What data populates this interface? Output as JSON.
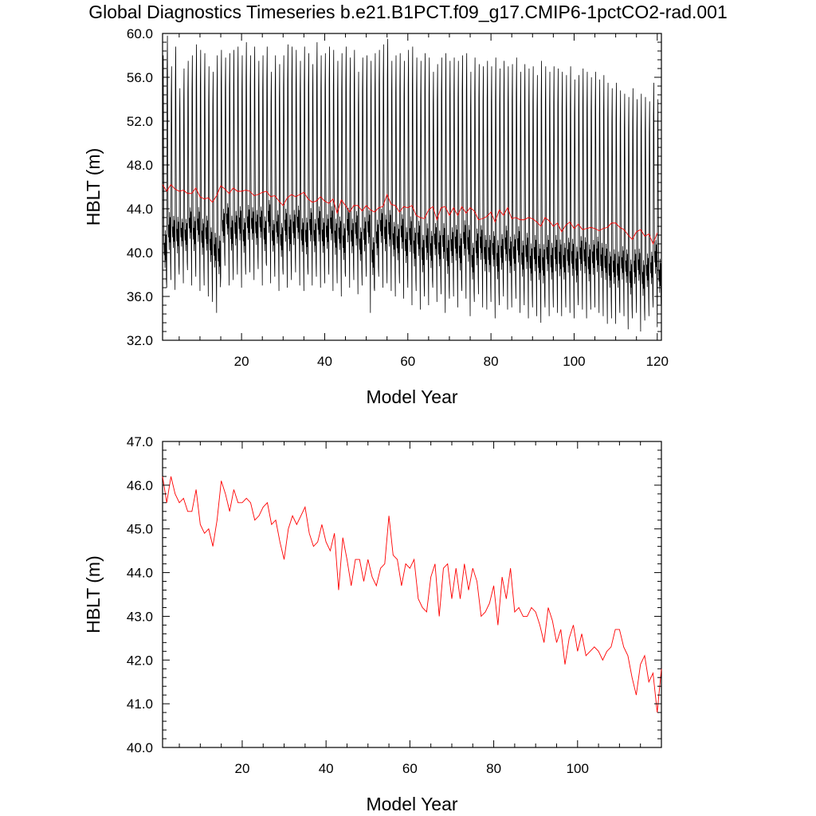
{
  "title": "Global Diagnostics Timeseries b.e21.B1PCT.f09_g17.CMIP6-1pctCO2-rad.001",
  "colors": {
    "monthly": "#000000",
    "annual": "#ff0000"
  },
  "chart_data": [
    {
      "type": "line",
      "xlabel": "Model Year",
      "ylabel": "HBLT (m)",
      "xlim": [
        1,
        121
      ],
      "ylim": [
        32,
        60
      ],
      "xticks": [
        20,
        40,
        60,
        80,
        100,
        120
      ],
      "yticks": [
        "32.0",
        "36.0",
        "40.0",
        "44.0",
        "48.0",
        "52.0",
        "56.0",
        "60.0"
      ],
      "grid": false,
      "series": [
        {
          "style": "monthly",
          "x_start": 1.0,
          "x_step": 0.0833333,
          "annual_min_approx": [
            35.2,
            36.8,
            37.5,
            36.6,
            38.0,
            37.2,
            38.4,
            37.0,
            37.8,
            36.5,
            37.0,
            36.0,
            35.5,
            34.5,
            37.8,
            38.8,
            37.0,
            37.5,
            38.0,
            36.8,
            38.0,
            38.2,
            37.5,
            38.5,
            37.0,
            38.8,
            37.2,
            37.8,
            36.5,
            38.0,
            36.8,
            37.5,
            38.2,
            37.0,
            36.5,
            38.0,
            37.0,
            37.8,
            36.8,
            37.2,
            38.0,
            36.5,
            37.2,
            36.0,
            37.8,
            36.8,
            37.5,
            36.2,
            37.0,
            37.8,
            34.5,
            36.5,
            37.8,
            36.8,
            37.2,
            36.5,
            36.0,
            37.2,
            35.8,
            36.8,
            35.2,
            36.5,
            34.8,
            36.0,
            35.2,
            36.8,
            35.5,
            36.2,
            34.5,
            35.8,
            36.0,
            35.0,
            36.5,
            35.8,
            34.2,
            35.5,
            36.2,
            35.0,
            34.8,
            35.5,
            34.0,
            35.2,
            36.0,
            34.8,
            35.0,
            35.8,
            34.5,
            35.2,
            34.0,
            35.0,
            34.2,
            33.6,
            35.0,
            34.2,
            35.0,
            34.5,
            34.2,
            35.0,
            34.5,
            34.0,
            35.2,
            34.8,
            34.0,
            34.8,
            35.0,
            34.5,
            34.2,
            33.5,
            34.0,
            33.5,
            34.5,
            34.2,
            33.0,
            34.0,
            34.5,
            32.8,
            33.8,
            34.2,
            35.0,
            33.2
          ],
          "annual_max_approx": [
            58.0,
            59.8,
            57.0,
            58.8,
            55.0,
            56.8,
            57.5,
            58.0,
            59.0,
            58.5,
            58.2,
            57.0,
            56.5,
            58.0,
            58.5,
            57.8,
            58.2,
            58.5,
            58.8,
            58.0,
            59.2,
            58.0,
            58.8,
            57.5,
            58.0,
            58.8,
            56.5,
            58.0,
            57.2,
            58.0,
            59.0,
            58.8,
            58.5,
            57.5,
            58.8,
            58.2,
            57.2,
            59.2,
            58.0,
            58.2,
            58.8,
            58.5,
            57.5,
            58.2,
            58.8,
            57.8,
            58.5,
            56.5,
            57.8,
            58.0,
            57.5,
            58.2,
            58.5,
            59.0,
            59.5,
            57.5,
            58.0,
            58.2,
            57.5,
            58.5,
            58.8,
            57.8,
            57.5,
            58.2,
            57.8,
            56.5,
            57.2,
            57.8,
            58.2,
            57.5,
            57.8,
            57.5,
            58.0,
            58.2,
            56.5,
            57.8,
            57.2,
            57.0,
            57.5,
            57.0,
            57.8,
            56.8,
            57.5,
            57.0,
            57.2,
            57.8,
            56.5,
            57.2,
            56.8,
            57.0,
            56.2,
            57.5,
            57.0,
            56.5,
            57.0,
            56.8,
            56.5,
            56.2,
            57.0,
            55.8,
            56.2,
            56.8,
            56.5,
            56.0,
            56.5,
            55.8,
            56.2,
            55.5,
            55.0,
            55.5,
            54.8,
            54.5,
            54.2,
            55.0,
            54.0,
            54.5,
            54.2,
            53.8,
            55.5,
            54.0
          ]
        },
        {
          "style": "annual",
          "x": [
            1,
            2,
            3,
            4,
            5,
            6,
            7,
            8,
            9,
            10,
            11,
            12,
            13,
            14,
            15,
            16,
            17,
            18,
            19,
            20,
            21,
            22,
            23,
            24,
            25,
            26,
            27,
            28,
            29,
            30,
            31,
            32,
            33,
            34,
            35,
            36,
            37,
            38,
            39,
            40,
            41,
            42,
            43,
            44,
            45,
            46,
            47,
            48,
            49,
            50,
            51,
            52,
            53,
            54,
            55,
            56,
            57,
            58,
            59,
            60,
            61,
            62,
            63,
            64,
            65,
            66,
            67,
            68,
            69,
            70,
            71,
            72,
            73,
            74,
            75,
            76,
            77,
            78,
            79,
            80,
            81,
            82,
            83,
            84,
            85,
            86,
            87,
            88,
            89,
            90,
            91,
            92,
            93,
            94,
            95,
            96,
            97,
            98,
            99,
            100,
            101,
            102,
            103,
            104,
            105,
            106,
            107,
            108,
            109,
            110,
            111,
            112,
            113,
            114,
            115,
            116,
            117,
            118,
            119,
            120
          ],
          "values": [
            46.2,
            45.6,
            46.2,
            45.8,
            45.6,
            45.7,
            45.4,
            45.4,
            45.9,
            45.1,
            44.9,
            45.0,
            44.6,
            45.2,
            46.1,
            45.8,
            45.4,
            45.9,
            45.6,
            45.6,
            45.7,
            45.6,
            45.2,
            45.3,
            45.5,
            45.6,
            45.1,
            45.2,
            44.7,
            44.3,
            45.0,
            45.3,
            45.1,
            45.3,
            45.5,
            44.9,
            44.6,
            44.7,
            45.1,
            44.7,
            44.5,
            44.9,
            43.6,
            44.8,
            44.3,
            43.7,
            44.3,
            44.3,
            43.8,
            44.3,
            43.9,
            43.7,
            44.1,
            44.2,
            45.3,
            44.4,
            44.3,
            43.7,
            44.2,
            44.1,
            44.3,
            43.4,
            43.2,
            43.1,
            43.9,
            44.2,
            43.0,
            44.1,
            44.2,
            43.4,
            44.1,
            43.4,
            44.2,
            43.6,
            44.1,
            43.8,
            43.0,
            43.1,
            43.3,
            43.7,
            42.8,
            43.9,
            43.4,
            44.1,
            43.1,
            43.2,
            43.0,
            43.0,
            43.2,
            43.1,
            42.8,
            42.4,
            43.2,
            42.9,
            42.4,
            42.7,
            41.9,
            42.5,
            42.8,
            42.2,
            42.6,
            42.1,
            42.2,
            42.3,
            42.2,
            42.0,
            42.2,
            42.3,
            42.7,
            42.7,
            42.3,
            42.1,
            41.6,
            41.2,
            41.9,
            42.1,
            41.5,
            41.7,
            40.8,
            41.8
          ]
        }
      ]
    },
    {
      "type": "line",
      "xlabel": "Model Year",
      "ylabel": "HBLT (m)",
      "xlim": [
        1,
        120
      ],
      "ylim": [
        40,
        47
      ],
      "xticks": [
        20,
        40,
        60,
        80,
        100
      ],
      "yticks": [
        "40.0",
        "41.0",
        "42.0",
        "43.0",
        "44.0",
        "45.0",
        "46.0",
        "47.0"
      ],
      "grid": false,
      "series": [
        {
          "style": "annual",
          "x": [
            1,
            2,
            3,
            4,
            5,
            6,
            7,
            8,
            9,
            10,
            11,
            12,
            13,
            14,
            15,
            16,
            17,
            18,
            19,
            20,
            21,
            22,
            23,
            24,
            25,
            26,
            27,
            28,
            29,
            30,
            31,
            32,
            33,
            34,
            35,
            36,
            37,
            38,
            39,
            40,
            41,
            42,
            43,
            44,
            45,
            46,
            47,
            48,
            49,
            50,
            51,
            52,
            53,
            54,
            55,
            56,
            57,
            58,
            59,
            60,
            61,
            62,
            63,
            64,
            65,
            66,
            67,
            68,
            69,
            70,
            71,
            72,
            73,
            74,
            75,
            76,
            77,
            78,
            79,
            80,
            81,
            82,
            83,
            84,
            85,
            86,
            87,
            88,
            89,
            90,
            91,
            92,
            93,
            94,
            95,
            96,
            97,
            98,
            99,
            100,
            101,
            102,
            103,
            104,
            105,
            106,
            107,
            108,
            109,
            110,
            111,
            112,
            113,
            114,
            115,
            116,
            117,
            118,
            119,
            120
          ],
          "values": [
            46.2,
            45.6,
            46.2,
            45.8,
            45.6,
            45.7,
            45.4,
            45.4,
            45.9,
            45.1,
            44.9,
            45.0,
            44.6,
            45.2,
            46.1,
            45.8,
            45.4,
            45.9,
            45.6,
            45.6,
            45.7,
            45.6,
            45.2,
            45.3,
            45.5,
            45.6,
            45.1,
            45.2,
            44.7,
            44.3,
            45.0,
            45.3,
            45.1,
            45.3,
            45.5,
            44.9,
            44.6,
            44.7,
            45.1,
            44.7,
            44.5,
            44.9,
            43.6,
            44.8,
            44.3,
            43.7,
            44.3,
            44.3,
            43.8,
            44.3,
            43.9,
            43.7,
            44.1,
            44.2,
            45.3,
            44.4,
            44.3,
            43.7,
            44.2,
            44.1,
            44.3,
            43.4,
            43.2,
            43.1,
            43.9,
            44.2,
            43.0,
            44.1,
            44.2,
            43.4,
            44.1,
            43.4,
            44.2,
            43.6,
            44.1,
            43.8,
            43.0,
            43.1,
            43.3,
            43.7,
            42.8,
            43.9,
            43.4,
            44.1,
            43.1,
            43.2,
            43.0,
            43.0,
            43.2,
            43.1,
            42.8,
            42.4,
            43.2,
            42.9,
            42.4,
            42.7,
            41.9,
            42.5,
            42.8,
            42.2,
            42.6,
            42.1,
            42.2,
            42.3,
            42.2,
            42.0,
            42.2,
            42.3,
            42.7,
            42.7,
            42.3,
            42.1,
            41.6,
            41.2,
            41.9,
            42.1,
            41.5,
            41.7,
            40.8,
            41.8
          ]
        }
      ]
    }
  ]
}
